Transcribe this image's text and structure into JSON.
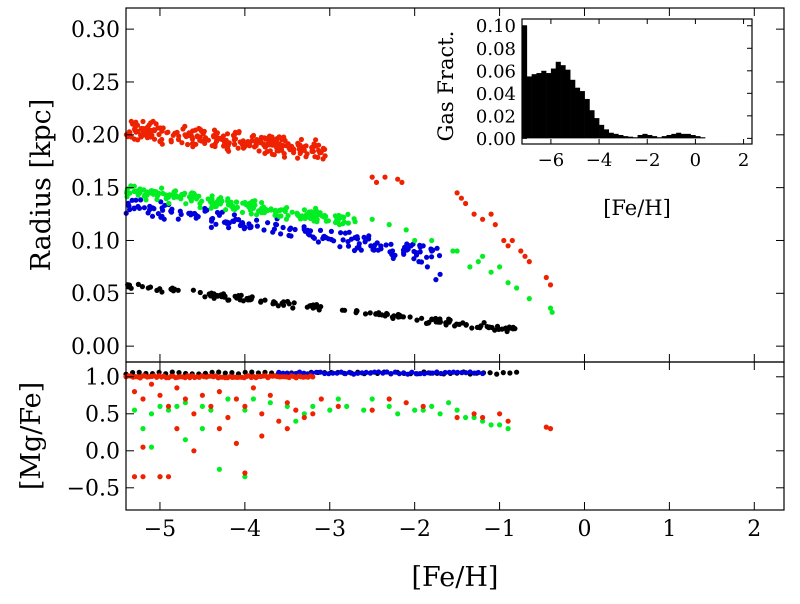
{
  "chart_data": [
    {
      "id": "main",
      "type": "scatter",
      "ylabel": "Radius [kpc]",
      "xlabel": "",
      "xlim": [
        -5.4,
        2.35
      ],
      "ylim": [
        -0.015,
        0.32
      ],
      "xticks": [
        -5,
        -4,
        -3,
        -2,
        -1,
        0,
        1,
        2
      ],
      "yticks": [
        0.0,
        0.05,
        0.1,
        0.15,
        0.2,
        0.25,
        0.3
      ],
      "ytick_labels": [
        "0.00",
        "0.05",
        "0.10",
        "0.15",
        "0.20",
        "0.25",
        "0.30"
      ],
      "series": [
        {
          "name": "black",
          "color": "#000000",
          "band": {
            "x0": -5.4,
            "x1": -0.8,
            "y0": 0.058,
            "y1": 0.015,
            "spread": 0.004,
            "n": 150
          }
        },
        {
          "name": "blue",
          "color": "#0000dd",
          "band": {
            "x0": -5.4,
            "x1": -1.7,
            "y0": 0.135,
            "y1": 0.085,
            "spread": 0.01,
            "n": 170
          },
          "points": [
            [
              -1.95,
              0.08
            ],
            [
              -1.85,
              0.075
            ],
            [
              -1.8,
              0.09
            ],
            [
              -1.7,
              0.068
            ],
            [
              -1.75,
              0.063
            ],
            [
              -1.9,
              0.095
            ]
          ]
        },
        {
          "name": "green",
          "color": "#00ee22",
          "band": {
            "x0": -5.4,
            "x1": -2.7,
            "y0": 0.148,
            "y1": 0.118,
            "spread": 0.008,
            "n": 200
          },
          "points": [
            [
              -2.5,
              0.12
            ],
            [
              -2.3,
              0.115
            ],
            [
              -2.1,
              0.11
            ],
            [
              -2.0,
              0.1
            ],
            [
              -1.8,
              0.1
            ],
            [
              -1.5,
              0.09
            ],
            [
              -1.35,
              0.075
            ],
            [
              -1.2,
              0.085
            ],
            [
              -1.1,
              0.07
            ],
            [
              -1.0,
              0.075
            ],
            [
              -0.9,
              0.06
            ],
            [
              -0.8,
              0.055
            ],
            [
              -0.65,
              0.045
            ],
            [
              -0.4,
              0.036
            ],
            [
              -0.38,
              0.032
            ],
            [
              -1.55,
              0.09
            ],
            [
              -1.25,
              0.08
            ]
          ]
        },
        {
          "name": "red",
          "color": "#ee2200",
          "band": {
            "x0": -5.4,
            "x1": -3.05,
            "y0": 0.205,
            "y1": 0.185,
            "spread": 0.011,
            "n": 260
          },
          "points": [
            [
              -2.5,
              0.16
            ],
            [
              -2.45,
              0.155
            ],
            [
              -2.35,
              0.16
            ],
            [
              -2.2,
              0.158
            ],
            [
              -2.15,
              0.155
            ],
            [
              -1.5,
              0.145
            ],
            [
              -1.45,
              0.14
            ],
            [
              -1.3,
              0.125
            ],
            [
              -1.2,
              0.12
            ],
            [
              -1.1,
              0.125
            ],
            [
              -1.05,
              0.115
            ],
            [
              -0.95,
              0.1
            ],
            [
              -0.9,
              0.095
            ],
            [
              -0.75,
              0.09
            ],
            [
              -0.7,
              0.085
            ],
            [
              -0.65,
              0.08
            ],
            [
              -0.45,
              0.065
            ],
            [
              -0.4,
              0.058
            ],
            [
              -0.85,
              0.1
            ],
            [
              -1.4,
              0.135
            ]
          ]
        }
      ]
    },
    {
      "id": "inset",
      "type": "bar",
      "title": "",
      "ylabel": "Gas Fract.",
      "xlabel": "[Fe/H]",
      "xlim": [
        -7.2,
        2.35
      ],
      "ylim": [
        -0.005,
        0.106
      ],
      "xticks": [
        -6,
        -4,
        -2,
        0,
        2
      ],
      "yticks": [
        0.0,
        0.02,
        0.04,
        0.06,
        0.08,
        0.1
      ],
      "ytick_labels": [
        "0.00",
        "0.02",
        "0.04",
        "0.06",
        "0.08",
        "0.10"
      ],
      "bin_start": -7.2,
      "bin_width": 0.2,
      "values": [
        0.1,
        0.055,
        0.057,
        0.058,
        0.06,
        0.058,
        0.062,
        0.068,
        0.065,
        0.061,
        0.052,
        0.045,
        0.042,
        0.035,
        0.025,
        0.018,
        0.012,
        0.008,
        0.005,
        0.004,
        0.003,
        0.002,
        0.0015,
        0.001,
        0.003,
        0.004,
        0.003,
        0.002,
        0.001,
        0.002,
        0.003,
        0.004,
        0.005,
        0.004,
        0.004,
        0.003,
        0.002,
        0.001
      ]
    },
    {
      "id": "lower",
      "type": "scatter",
      "ylabel": "[Mg/Fe]",
      "xlabel": "[Fe/H]",
      "xlim": [
        -5.4,
        2.35
      ],
      "ylim": [
        -0.8,
        1.2
      ],
      "xticks": [
        -5,
        -4,
        -3,
        -2,
        -1,
        0,
        1,
        2
      ],
      "xtick_labels": [
        "−5",
        "−4",
        "−3",
        "−2",
        "−1",
        "0",
        "1",
        "2"
      ],
      "yticks": [
        -0.5,
        0.0,
        0.5,
        1.0
      ],
      "ytick_labels": [
        "−0.5",
        "0.0",
        "0.5",
        "1.0"
      ],
      "series": [
        {
          "name": "black",
          "color": "#000000",
          "line": {
            "x0": -5.4,
            "x1": -0.8,
            "y": 1.05,
            "n": 60
          }
        },
        {
          "name": "blue",
          "color": "#0000dd",
          "line": {
            "x0": -3.6,
            "x1": -1.2,
            "y": 1.05,
            "n": 50
          }
        },
        {
          "name": "green",
          "color": "#00ee22",
          "points": [
            [
              -5.3,
              0.55
            ],
            [
              -5.1,
              0.5
            ],
            [
              -5.0,
              0.6
            ],
            [
              -4.9,
              0.55
            ],
            [
              -4.8,
              0.6
            ],
            [
              -4.7,
              0.65
            ],
            [
              -4.5,
              0.6
            ],
            [
              -4.4,
              0.55
            ],
            [
              -4.2,
              0.7
            ],
            [
              -4.0,
              0.55
            ],
            [
              -3.9,
              0.7
            ],
            [
              -3.7,
              0.65
            ],
            [
              -3.5,
              0.6
            ],
            [
              -3.3,
              0.5
            ],
            [
              -3.0,
              0.55
            ],
            [
              -2.8,
              0.6
            ],
            [
              -2.5,
              0.7
            ],
            [
              -2.3,
              0.6
            ],
            [
              -2.0,
              0.55
            ],
            [
              -1.8,
              0.6
            ],
            [
              -1.6,
              0.65
            ],
            [
              -1.5,
              0.55
            ],
            [
              -1.4,
              0.45
            ],
            [
              -1.3,
              0.45
            ],
            [
              -1.2,
              0.4
            ],
            [
              -1.1,
              0.35
            ],
            [
              -1.0,
              0.35
            ],
            [
              -0.9,
              0.3
            ],
            [
              -5.1,
              0.05
            ],
            [
              -5.2,
              0.3
            ],
            [
              -4.5,
              0.3
            ],
            [
              -3.4,
              0.4
            ],
            [
              -2.9,
              0.7
            ],
            [
              -2.6,
              0.55
            ],
            [
              -1.7,
              0.5
            ],
            [
              -4.0,
              -0.35
            ],
            [
              -5.0,
              -0.35
            ],
            [
              -4.7,
              0.15
            ],
            [
              -3.2,
              0.6
            ],
            [
              -2.2,
              0.5
            ],
            [
              -1.9,
              0.55
            ],
            [
              -4.3,
              -0.25
            ]
          ]
        },
        {
          "name": "red",
          "color": "#ee2200",
          "line": {
            "x0": -5.4,
            "x1": -3.2,
            "y": 1.0,
            "n": 80
          },
          "points": [
            [
              -5.3,
              0.8
            ],
            [
              -5.2,
              0.7
            ],
            [
              -5.1,
              0.9
            ],
            [
              -5.0,
              0.75
            ],
            [
              -4.9,
              0.6
            ],
            [
              -4.8,
              0.85
            ],
            [
              -4.7,
              0.7
            ],
            [
              -4.6,
              0.5
            ],
            [
              -4.5,
              0.75
            ],
            [
              -4.4,
              0.6
            ],
            [
              -4.3,
              0.8
            ],
            [
              -4.2,
              0.45
            ],
            [
              -4.1,
              0.7
            ],
            [
              -4.0,
              0.6
            ],
            [
              -3.9,
              0.85
            ],
            [
              -3.8,
              0.5
            ],
            [
              -3.7,
              0.75
            ],
            [
              -3.6,
              0.4
            ],
            [
              -3.5,
              0.65
            ],
            [
              -3.4,
              0.55
            ],
            [
              -3.3,
              0.45
            ],
            [
              -3.1,
              0.7
            ],
            [
              -2.9,
              0.6
            ],
            [
              -2.5,
              0.55
            ],
            [
              -2.3,
              0.7
            ],
            [
              -2.1,
              0.65
            ],
            [
              -1.9,
              0.6
            ],
            [
              -1.5,
              0.45
            ],
            [
              -1.3,
              0.5
            ],
            [
              -1.2,
              0.45
            ],
            [
              -1.0,
              0.5
            ],
            [
              -0.9,
              0.4
            ],
            [
              -0.45,
              0.32
            ],
            [
              -0.4,
              0.3
            ],
            [
              -5.3,
              -0.35
            ],
            [
              -5.2,
              -0.35
            ],
            [
              -5.0,
              -0.35
            ],
            [
              -4.9,
              -0.35
            ],
            [
              -4.6,
              0.0
            ],
            [
              -4.0,
              -0.3
            ],
            [
              -5.2,
              0.05
            ],
            [
              -4.8,
              0.3
            ],
            [
              -4.3,
              0.3
            ],
            [
              -3.8,
              0.2
            ],
            [
              -3.5,
              0.3
            ],
            [
              -4.1,
              0.1
            ],
            [
              -3.2,
              0.5
            ]
          ]
        }
      ]
    }
  ]
}
